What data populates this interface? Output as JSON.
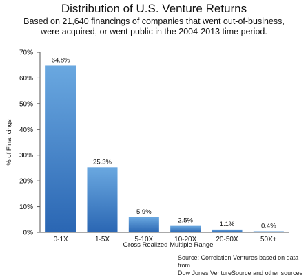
{
  "chart_data": {
    "type": "bar",
    "title": "Distribution of U.S. Venture Returns",
    "subtitle": [
      "Based on 21,640 financings of companies that went out-of-business,",
      "were acquired, or went public in the 2004-2013 time period."
    ],
    "categories": [
      "0-1X",
      "1-5X",
      "5-10X",
      "10-20X",
      "20-50X",
      "50X+"
    ],
    "values": [
      64.8,
      25.3,
      5.9,
      2.5,
      1.1,
      0.4
    ],
    "value_labels": [
      "64.8%",
      "25.3%",
      "5.9%",
      "2.5%",
      "1.1%",
      "0.4%"
    ],
    "xlabel": "Gross Realized Multiple Range",
    "ylabel": "% of Financings",
    "ylim": [
      0,
      70
    ],
    "yticks": [
      0,
      10,
      20,
      30,
      40,
      50,
      60,
      70
    ],
    "ytick_labels": [
      "0%",
      "10%",
      "20%",
      "30%",
      "40%",
      "50%",
      "60%",
      "70%"
    ],
    "grid": false,
    "bar_color_top": "#6aa8e0",
    "bar_color_bottom": "#2a66b3"
  },
  "source_note": [
    "Source: Correlation Ventures based on data from",
    "Dow Jones VentureSource and other sources"
  ]
}
